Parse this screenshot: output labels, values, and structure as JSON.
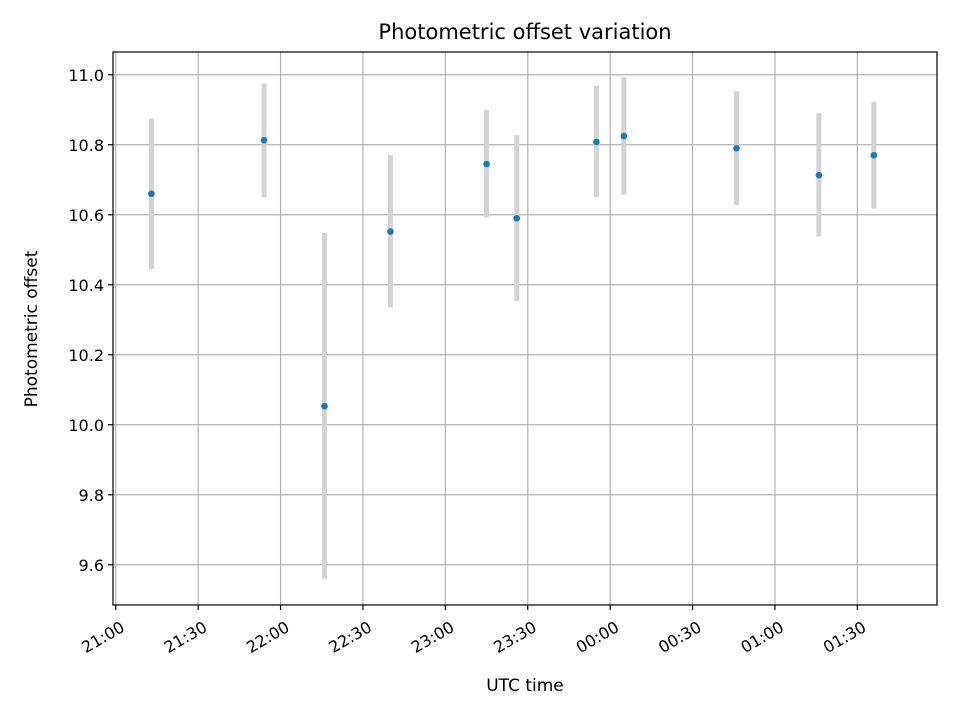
{
  "chart_data": {
    "type": "scatter",
    "title": "Photometric offset variation",
    "xlabel": "UTC time",
    "ylabel": "Photometric offset",
    "x_ticks": [
      "21:00",
      "21:30",
      "22:00",
      "22:30",
      "23:00",
      "23:30",
      "00:00",
      "00:30",
      "01:00",
      "01:30"
    ],
    "xlim": [
      "20:59",
      "01:59"
    ],
    "y_ticks": [
      "9.6",
      "9.8",
      "10.0",
      "10.2",
      "10.4",
      "10.6",
      "10.8",
      "11.0"
    ],
    "ylim": [
      9.485,
      11.065
    ],
    "grid": true,
    "point_color": "#1f77b4",
    "errorbar_color": "#d3d3d3",
    "points": [
      {
        "t": "21:13",
        "y": 10.66,
        "ylow": 10.445,
        "yhigh": 10.875
      },
      {
        "t": "21:54",
        "y": 10.813,
        "ylow": 10.65,
        "yhigh": 10.975
      },
      {
        "t": "22:16",
        "y": 10.053,
        "ylow": 9.56,
        "yhigh": 10.548
      },
      {
        "t": "22:40",
        "y": 10.552,
        "ylow": 10.335,
        "yhigh": 10.77
      },
      {
        "t": "23:15",
        "y": 10.745,
        "ylow": 10.592,
        "yhigh": 10.9
      },
      {
        "t": "23:26",
        "y": 10.59,
        "ylow": 10.353,
        "yhigh": 10.827
      },
      {
        "t": "23:55",
        "y": 10.808,
        "ylow": 10.65,
        "yhigh": 10.968
      },
      {
        "t": "00:05",
        "y": 10.825,
        "ylow": 10.658,
        "yhigh": 10.993
      },
      {
        "t": "00:46",
        "y": 10.79,
        "ylow": 10.628,
        "yhigh": 10.953
      },
      {
        "t": "01:16",
        "y": 10.713,
        "ylow": 10.538,
        "yhigh": 10.89
      },
      {
        "t": "01:36",
        "y": 10.77,
        "ylow": 10.618,
        "yhigh": 10.923
      }
    ]
  }
}
